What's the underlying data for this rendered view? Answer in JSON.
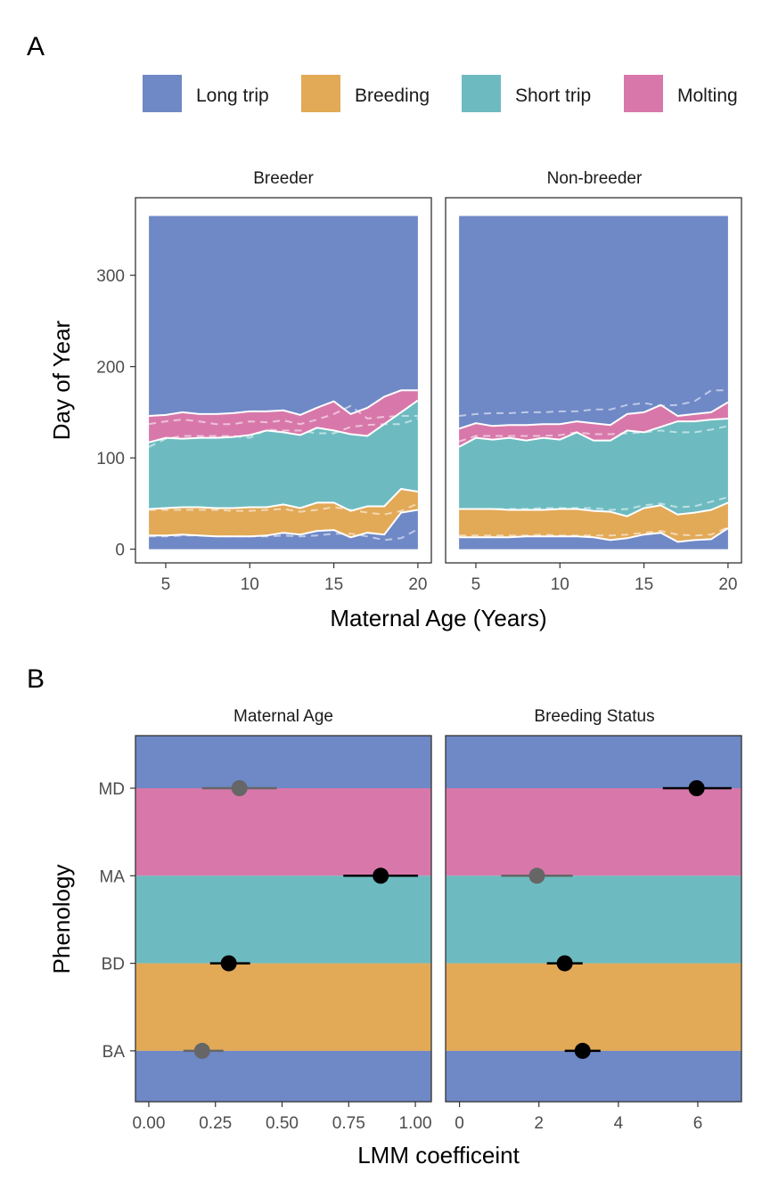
{
  "figure": {
    "panel_a_letter": "A",
    "panel_b_letter": "B"
  },
  "colors": {
    "long_trip": "#6f88c6",
    "breeding": "#e2a957",
    "short_trip": "#6dbbc0",
    "molting": "#d878aa"
  },
  "legend": {
    "items": [
      {
        "label": "Long trip",
        "color": "#6f88c6"
      },
      {
        "label": "Breeding",
        "color": "#e2a957"
      },
      {
        "label": "Short trip",
        "color": "#6dbbc0"
      },
      {
        "label": "Molting",
        "color": "#d878aa"
      }
    ]
  },
  "chart_data": [
    {
      "type": "area",
      "panel": "A",
      "facets": [
        "Breeder",
        "Non-breeder"
      ],
      "xlabel": "Maternal Age (Years)",
      "ylabel": "Day of Year",
      "xlim": [
        3.2,
        20.8
      ],
      "ylim": [
        -15,
        385
      ],
      "x_ticks": [
        5,
        10,
        15,
        20
      ],
      "y_ticks": [
        0,
        100,
        200,
        300
      ],
      "x": [
        4,
        5,
        6,
        7,
        8,
        9,
        10,
        11,
        12,
        13,
        14,
        15,
        16,
        17,
        18,
        19,
        20
      ],
      "year_end": 365,
      "series": [
        {
          "facet": "Breeder",
          "breeding_start": [
            15,
            15,
            16,
            15,
            14,
            14,
            14,
            15,
            18,
            16,
            20,
            21,
            13,
            18,
            16,
            40,
            43
          ],
          "breeding_end": [
            44,
            45,
            46,
            46,
            45,
            45,
            46,
            46,
            49,
            45,
            51,
            51,
            42,
            47,
            47,
            66,
            63
          ],
          "molting_start": [
            117,
            122,
            121,
            122,
            122,
            123,
            125,
            130,
            128,
            125,
            133,
            130,
            126,
            124,
            137,
            150,
            163
          ],
          "molting_end": [
            146,
            147,
            150,
            148,
            148,
            149,
            151,
            151,
            152,
            147,
            155,
            162,
            148,
            155,
            167,
            174,
            174
          ],
          "dashed_breeding_start": [
            14,
            14,
            15,
            15,
            14,
            14,
            14,
            14,
            15,
            14,
            15,
            17,
            17,
            14,
            10,
            12,
            22
          ],
          "dashed_breeding_end": [
            43,
            43,
            43,
            43,
            43,
            42,
            42,
            43,
            44,
            41,
            43,
            46,
            43,
            40,
            38,
            42,
            50
          ],
          "dashed_molting_start": [
            112,
            121,
            124,
            124,
            124,
            124,
            122,
            131,
            130,
            130,
            127,
            127,
            134,
            136,
            137,
            137,
            143
          ],
          "dashed_molting_end": [
            137,
            140,
            142,
            140,
            137,
            137,
            140,
            139,
            141,
            137,
            142,
            148,
            157,
            143,
            145,
            146,
            146
          ]
        },
        {
          "facet": "Non-breeder",
          "breeding_start": [
            13,
            13,
            13,
            13,
            14,
            14,
            14,
            14,
            13,
            10,
            12,
            16,
            18,
            8,
            10,
            11,
            23
          ],
          "breeding_end": [
            44,
            44,
            44,
            43,
            43,
            43,
            44,
            44,
            42,
            41,
            36,
            45,
            48,
            38,
            40,
            43,
            51
          ],
          "molting_start": [
            112,
            122,
            120,
            122,
            119,
            122,
            120,
            128,
            119,
            119,
            130,
            128,
            134,
            140,
            140,
            142,
            143
          ],
          "molting_end": [
            132,
            138,
            135,
            136,
            136,
            137,
            137,
            140,
            138,
            136,
            148,
            150,
            158,
            146,
            148,
            150,
            161
          ],
          "dashed_breeding_start": [
            15,
            15,
            15,
            15,
            15,
            16,
            15,
            15,
            15,
            15,
            16,
            18,
            20,
            16,
            15,
            16,
            24
          ],
          "dashed_breeding_end": [
            44,
            44,
            44,
            44,
            44,
            45,
            45,
            45,
            45,
            43,
            44,
            48,
            50,
            46,
            47,
            52,
            57
          ],
          "dashed_molting_start": [
            118,
            124,
            124,
            124,
            124,
            124,
            125,
            128,
            126,
            126,
            127,
            128,
            130,
            128,
            128,
            131,
            135
          ],
          "dashed_molting_end": [
            146,
            148,
            149,
            149,
            150,
            150,
            151,
            151,
            153,
            153,
            158,
            160,
            157,
            158,
            162,
            174,
            174
          ]
        }
      ]
    },
    {
      "type": "scatter",
      "panel": "B",
      "facets": [
        "Maternal Age",
        "Breeding Status"
      ],
      "xlabel": "LMM coefficeint",
      "ylabel": "Phenology",
      "categories": [
        "MD",
        "MA",
        "BD",
        "BA"
      ],
      "band_colors": [
        "#6f88c6",
        "#d878aa",
        "#6dbbc0",
        "#e2a957",
        "#6f88c6"
      ],
      "facet_settings": [
        {
          "facet": "Maternal Age",
          "xlim": [
            -0.05,
            1.06
          ],
          "x_ticks": [
            0.0,
            0.25,
            0.5,
            0.75,
            1.0
          ],
          "x_tick_labels": [
            "0.00",
            "0.25",
            "0.50",
            "0.75",
            "1.00"
          ]
        },
        {
          "facet": "Breeding Status",
          "xlim": [
            -0.35,
            7.1
          ],
          "x_ticks": [
            0,
            2,
            4,
            6
          ],
          "x_tick_labels": [
            "0",
            "2",
            "4",
            "6"
          ]
        }
      ],
      "series": [
        {
          "facet": "Maternal Age",
          "estimate": [
            0.34,
            0.87,
            0.3,
            0.2
          ],
          "lower": [
            0.2,
            0.73,
            0.23,
            0.13
          ],
          "upper": [
            0.48,
            1.01,
            0.38,
            0.28
          ],
          "significant": [
            false,
            true,
            true,
            false
          ]
        },
        {
          "facet": "Breeding Status",
          "estimate": [
            5.97,
            1.95,
            2.65,
            3.1
          ],
          "lower": [
            5.12,
            1.05,
            2.2,
            2.65
          ],
          "upper": [
            6.85,
            2.85,
            3.1,
            3.55
          ],
          "significant": [
            true,
            false,
            true,
            true
          ]
        }
      ]
    }
  ]
}
